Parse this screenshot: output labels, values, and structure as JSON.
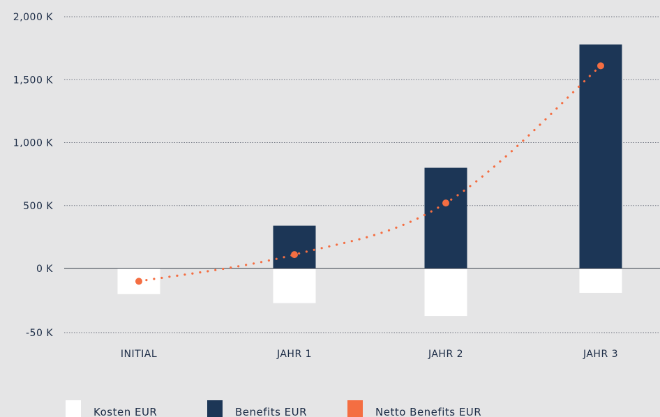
{
  "chart_data": {
    "type": "bar",
    "categories": [
      "INITIAL",
      "JAHR 1",
      "JAHR 2",
      "JAHR 3"
    ],
    "series": [
      {
        "name": "Kosten EUR",
        "kind": "bar",
        "color": "#ffffff",
        "values": [
          -20,
          -27,
          -37,
          -19
        ]
      },
      {
        "name": "Benefits EUR",
        "kind": "bar",
        "color": "#1c3656",
        "values": [
          0,
          340,
          800,
          1780
        ]
      },
      {
        "name": "Netto Benefits EUR",
        "kind": "line-dotted",
        "color": "#f46e42",
        "values": [
          -10,
          110,
          520,
          1610
        ]
      }
    ],
    "y_ticks": [
      {
        "value": 2000,
        "label": "2,000 K"
      },
      {
        "value": 1500,
        "label": "1,500 K"
      },
      {
        "value": 1000,
        "label": "1,000 K"
      },
      {
        "value": 500,
        "label": "500 K"
      },
      {
        "value": 0,
        "label": "0 K"
      },
      {
        "value": -50,
        "label": "-50 K"
      }
    ],
    "ylim": [
      -50,
      2000
    ],
    "grid": true,
    "legend_position": "bottom-left",
    "title": "",
    "xlabel": "",
    "ylabel": ""
  }
}
